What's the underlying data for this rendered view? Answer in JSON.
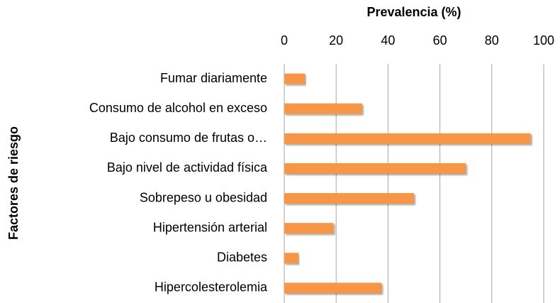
{
  "chart_data": {
    "type": "barh",
    "title": "Prevalencia (%)",
    "y_label": "Factores de riesgo",
    "categories": [
      "Fumar diariamente",
      "Consumo de alcohol en exceso",
      "Bajo consumo de frutas o…",
      "Bajo nivel de actividad física",
      "Sobrepeso u obesidad",
      "Hipertensión arterial",
      "Diabetes",
      "Hipercolesterolemia"
    ],
    "values": [
      8,
      30,
      95,
      70,
      50,
      19,
      5.5,
      37.5
    ],
    "color": "#f79646",
    "xlim": [
      0,
      100
    ],
    "xticks": [
      0,
      20,
      40,
      60,
      80,
      100
    ],
    "grid": true
  }
}
